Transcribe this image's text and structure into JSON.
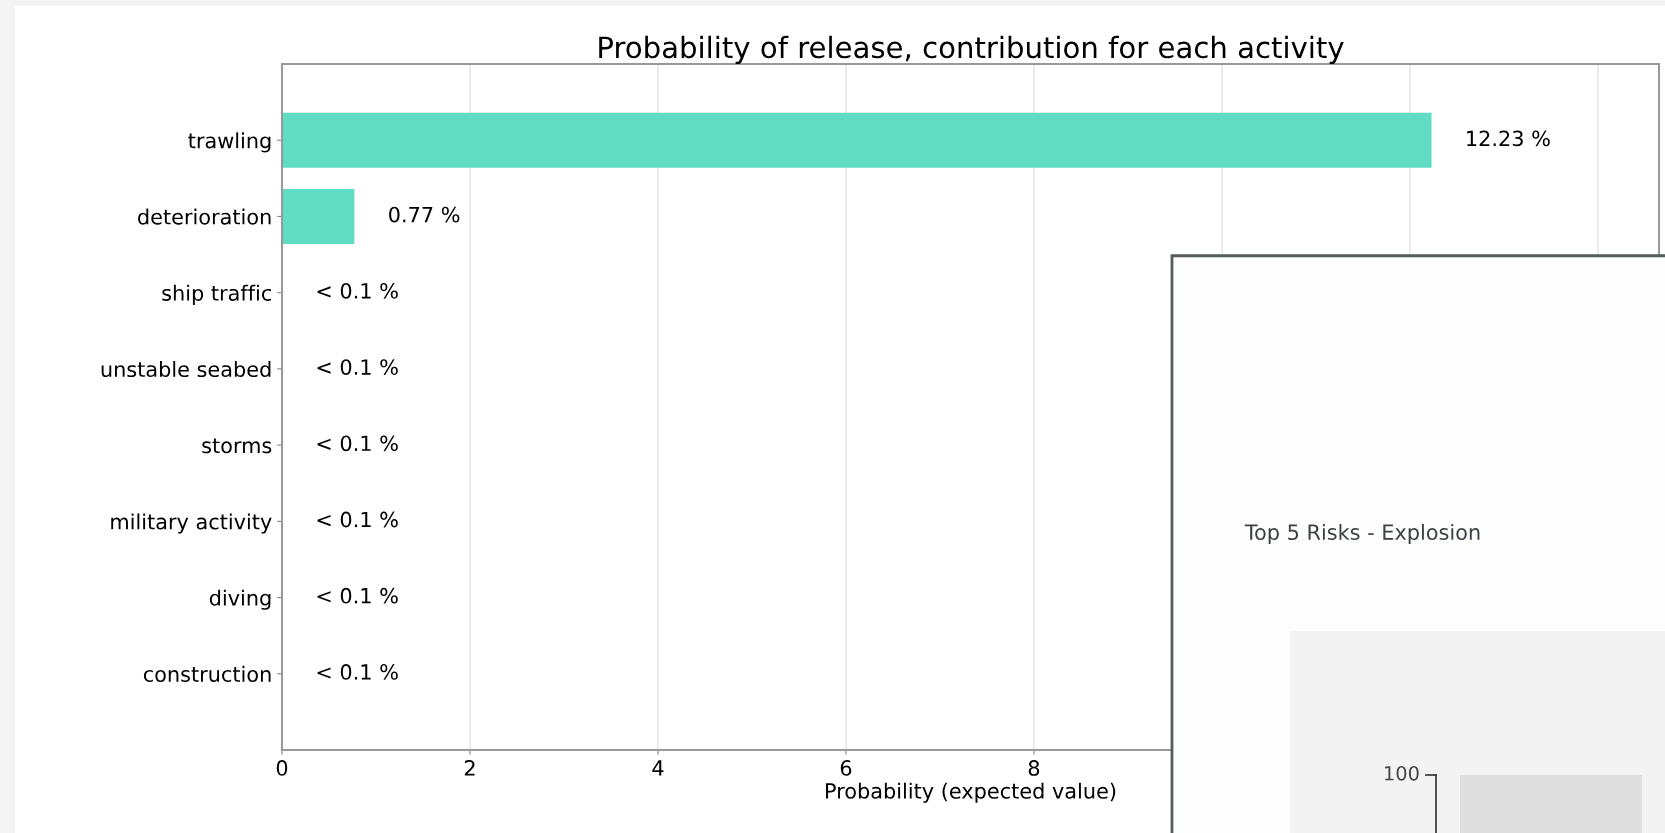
{
  "chart_data": [
    {
      "type": "bar",
      "orientation": "horizontal",
      "title": "Probability of release, contribution for each activity",
      "xlabel": "Probability (expected value)",
      "categories": [
        "trawling",
        "deterioration",
        "ship traffic",
        "unstable seabed",
        "storms",
        "military activity",
        "diving",
        "construction"
      ],
      "values": [
        12.23,
        0.77,
        0,
        0,
        0,
        0,
        0,
        0
      ],
      "value_labels": [
        "12.23 %",
        "0.77 %",
        "< 0.1 %",
        "< 0.1 %",
        "< 0.1 %",
        "< 0.1 %",
        "< 0.1 %",
        "< 0.1 %"
      ],
      "color": "#60dcc3",
      "xlim": [
        0,
        14.65
      ],
      "xticks": [
        0,
        2,
        4,
        6,
        8,
        {
          "value": 10,
          "label": null
        },
        {
          "value": 12,
          "label": null
        },
        {
          "value": 14,
          "label": null
        }
      ],
      "grid": "x"
    },
    {
      "type": "other",
      "title": "Top 5 Risks - Explosion",
      "annotations": [
        "100"
      ]
    }
  ]
}
